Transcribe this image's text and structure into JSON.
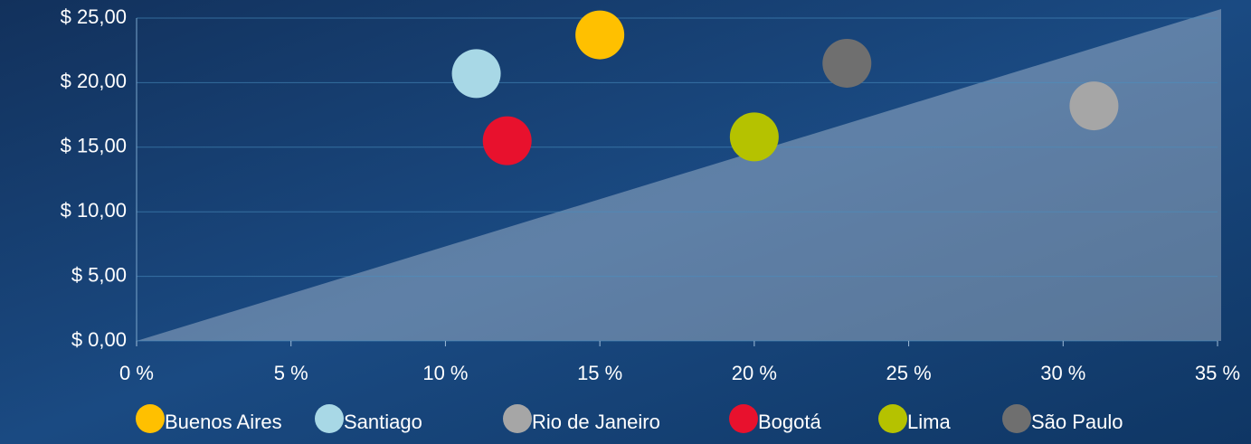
{
  "chart_data": {
    "type": "scatter",
    "series": [
      {
        "name": "Buenos Aires",
        "color": "#ffc000",
        "x": [
          15
        ],
        "values": [
          23.7
        ]
      },
      {
        "name": "Santiago",
        "color": "#a8d8e6",
        "x": [
          11
        ],
        "values": [
          20.7
        ]
      },
      {
        "name": "Rio de Janeiro",
        "color": "#a6a6a6",
        "x": [
          31
        ],
        "values": [
          18.2
        ]
      },
      {
        "name": "Bogotá",
        "color": "#e8112d",
        "x": [
          12
        ],
        "values": [
          15.5
        ]
      },
      {
        "name": "Lima",
        "color": "#b5c200",
        "x": [
          20
        ],
        "values": [
          15.8
        ]
      },
      {
        "name": "São Paulo",
        "color": "#6f6f6f",
        "x": [
          23
        ],
        "values": [
          21.5
        ]
      }
    ],
    "xlim": [
      0,
      35
    ],
    "xticks": [
      {
        "value": 0,
        "label": "0 %"
      },
      {
        "value": 5,
        "label": "5 %"
      },
      {
        "value": 10,
        "label": "10 %"
      },
      {
        "value": 15,
        "label": "15 %"
      },
      {
        "value": 20,
        "label": "20 %"
      },
      {
        "value": 25,
        "label": "25 %"
      },
      {
        "value": 30,
        "label": "30 %"
      },
      {
        "value": 35,
        "label": "35 %"
      }
    ],
    "ylim": [
      0,
      25
    ],
    "yticks": [
      {
        "value": 0,
        "label": "$ 0,00"
      },
      {
        "value": 5,
        "label": "$ 5,00"
      },
      {
        "value": 10,
        "label": "$ 10,00"
      },
      {
        "value": 15,
        "label": "$ 15,00"
      },
      {
        "value": 20,
        "label": "$ 20,00"
      },
      {
        "value": 25,
        "label": "$ 25,00"
      }
    ],
    "grid": true,
    "legend": "bottom"
  }
}
